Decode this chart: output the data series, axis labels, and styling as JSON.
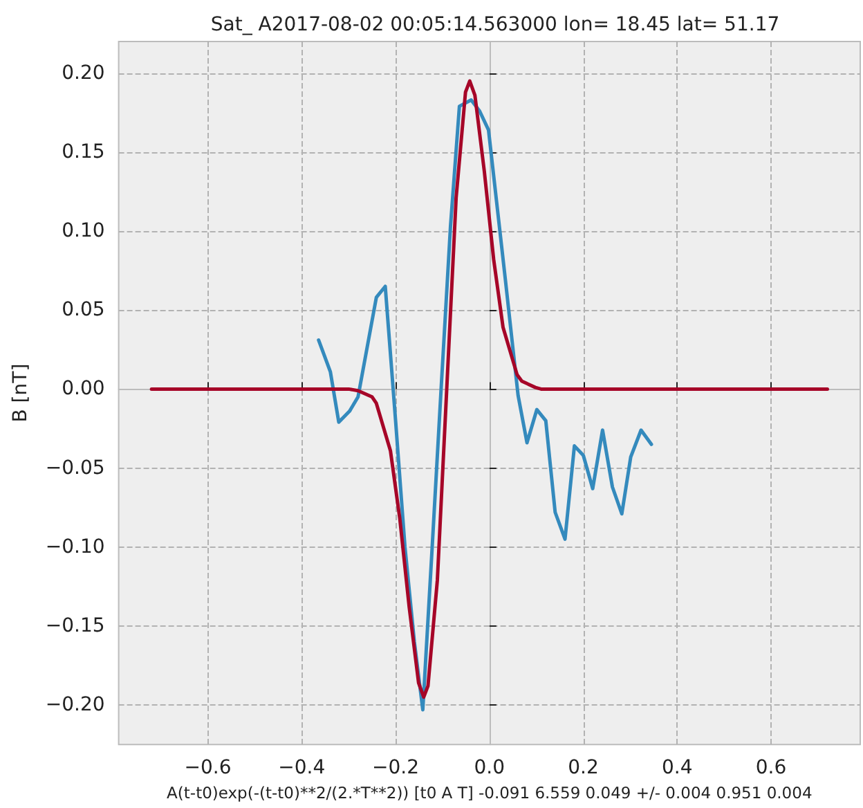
{
  "chart_data": {
    "type": "line",
    "title": "Sat_ A2017-08-02 00:05:14.563000 lon= 18.45 lat= 51.17",
    "xlabel": "A(t-t0)exp(-(t-t0)**2/(2.*T**2)) [t0 A T] -0.091 6.559 0.049 +/- 0.004 0.951 0.004",
    "ylabel": "B [nT]",
    "xlim": [
      -0.79,
      0.79
    ],
    "ylim": [
      -0.225,
      0.22
    ],
    "xticks": [
      {
        "value": -0.6,
        "label": "−0.6"
      },
      {
        "value": -0.4,
        "label": "−0.4"
      },
      {
        "value": -0.2,
        "label": "−0.2"
      },
      {
        "value": 0,
        "label": "0.0"
      },
      {
        "value": 0.2,
        "label": "0.2"
      },
      {
        "value": 0.4,
        "label": "0.4"
      },
      {
        "value": 0.6,
        "label": "0.6"
      }
    ],
    "yticks": [
      {
        "value": -0.2,
        "label": "−0.20"
      },
      {
        "value": -0.15,
        "label": "−0.15"
      },
      {
        "value": -0.1,
        "label": "−0.10"
      },
      {
        "value": -0.05,
        "label": "−0.05"
      },
      {
        "value": 0,
        "label": "0.00"
      },
      {
        "value": 0.05,
        "label": "0.05"
      },
      {
        "value": 0.1,
        "label": "0.10"
      },
      {
        "value": 0.15,
        "label": "0.15"
      },
      {
        "value": 0.2,
        "label": "0.20"
      }
    ],
    "grid": true,
    "line_style": "solid",
    "marker": "none",
    "series": [
      {
        "color": "#348abd",
        "x": [
          -0.364,
          -0.339,
          -0.321,
          -0.298,
          -0.28,
          -0.241,
          -0.222,
          -0.2,
          -0.18,
          -0.16,
          -0.142,
          -0.122,
          -0.103,
          -0.083,
          -0.064,
          -0.039,
          -0.021,
          -0.002,
          0.034,
          0.061,
          0.08,
          0.101,
          0.12,
          0.14,
          0.161,
          0.181,
          0.2,
          0.22,
          0.241,
          0.262,
          0.282,
          0.301,
          0.323,
          0.345
        ],
        "values": [
          0.031,
          0.011,
          -0.021,
          -0.014,
          -0.005,
          0.058,
          0.065,
          -0.02,
          -0.1,
          -0.16,
          -0.203,
          -0.1,
          0.0,
          0.103,
          0.179,
          0.183,
          0.176,
          0.164,
          0.069,
          -0.004,
          -0.034,
          -0.013,
          -0.02,
          -0.078,
          -0.095,
          -0.036,
          -0.042,
          -0.063,
          -0.026,
          -0.062,
          -0.079,
          -0.043,
          -0.026,
          -0.035
        ]
      },
      {
        "color": "#a60628",
        "x": [
          -0.72,
          -0.3,
          -0.28,
          -0.25,
          -0.241,
          -0.211,
          -0.191,
          -0.171,
          -0.151,
          -0.14,
          -0.131,
          -0.111,
          -0.091,
          -0.071,
          -0.051,
          -0.042,
          -0.031,
          -0.011,
          0.009,
          0.029,
          0.059,
          0.069,
          0.098,
          0.11,
          0.72
        ],
        "values": [
          0,
          0,
          -0.001,
          -0.005,
          -0.009,
          -0.039,
          -0.082,
          -0.138,
          -0.186,
          -0.195,
          -0.188,
          -0.121,
          0,
          0.121,
          0.188,
          0.195,
          0.186,
          0.138,
          0.082,
          0.039,
          0.009,
          0.005,
          0.001,
          0,
          0
        ]
      }
    ]
  }
}
